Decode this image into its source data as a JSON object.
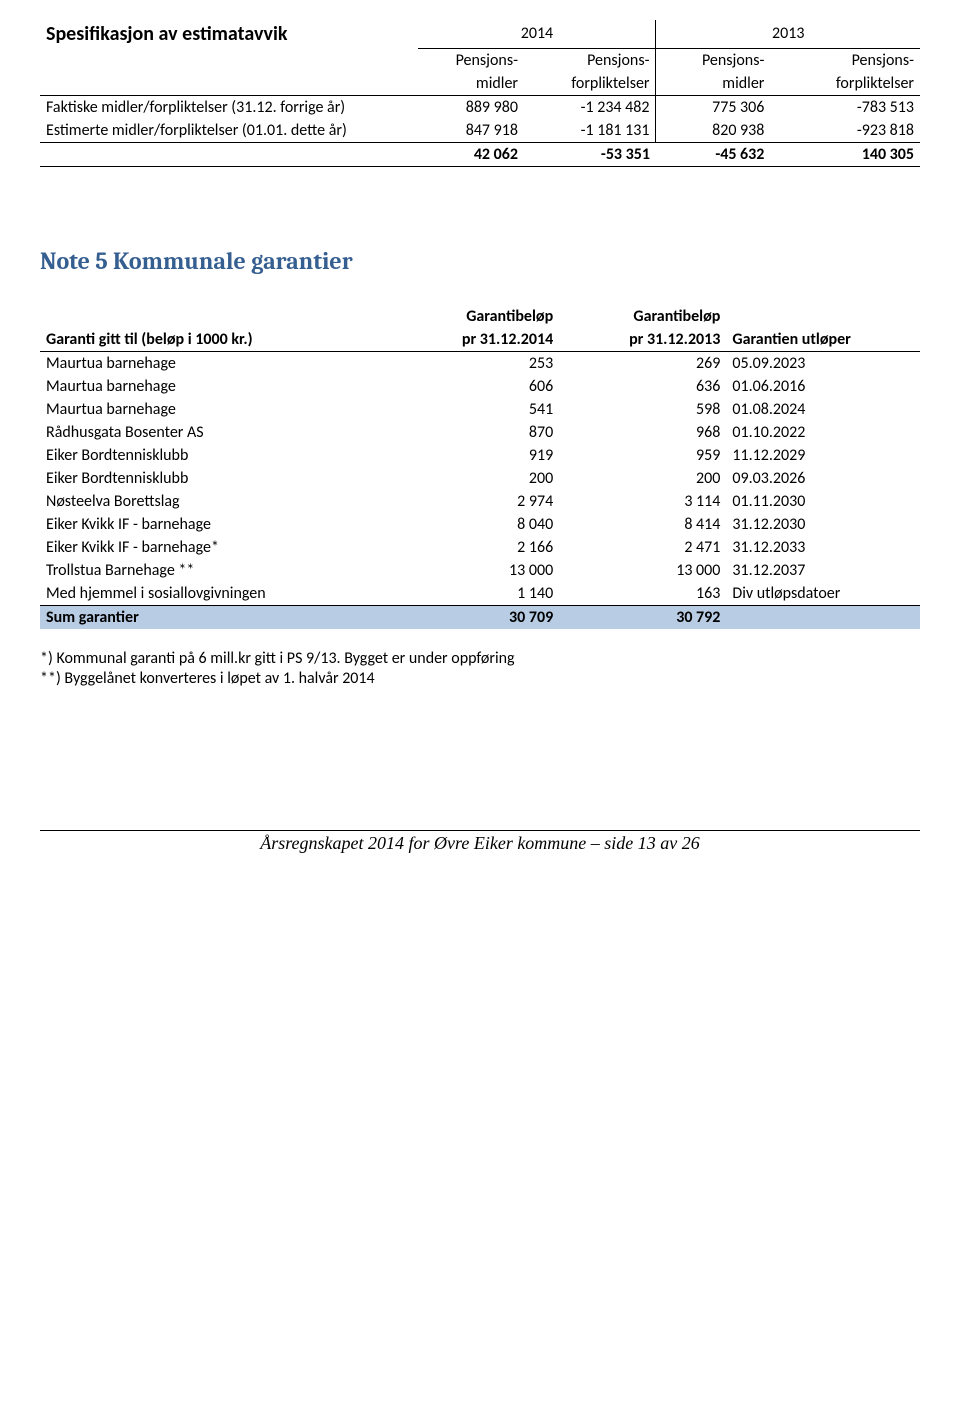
{
  "section1": {
    "title": "Spesifikasjon av estimatavvik",
    "years": [
      "2014",
      "2013"
    ],
    "col_headers": [
      "",
      "Pensjons-",
      "Pensjons-",
      "Pensjons-",
      "Pensjons-"
    ],
    "col_headers2": [
      "",
      "midler",
      "forpliktelser",
      "midler",
      "forpliktelser"
    ],
    "rows": [
      {
        "label": "Faktiske midler/forpliktelser (31.12. forrige år)",
        "c": [
          "889 980",
          "-1 234 482",
          "775 306",
          "-783 513"
        ]
      },
      {
        "label": "Estimerte midler/forpliktelser (01.01. dette år)",
        "c": [
          "847 918",
          "-1 181 131",
          "820 938",
          "-923 818"
        ]
      }
    ],
    "total": {
      "label": "",
      "c": [
        "42 062",
        "-53 351",
        "-45 632",
        "140 305"
      ]
    }
  },
  "section2": {
    "title": "Note 5 Kommunale garantier",
    "h1": [
      "",
      "Garantibeløp",
      "Garantibeløp",
      ""
    ],
    "h2": [
      "Garanti gitt til (beløp i 1000 kr.)",
      "pr 31.12.2014",
      "pr 31.12.2013",
      "Garantien utløper"
    ],
    "rows": [
      [
        "Maurtua barnehage",
        "253",
        "269",
        "05.09.2023"
      ],
      [
        "Maurtua barnehage",
        "606",
        "636",
        "01.06.2016"
      ],
      [
        "Maurtua barnehage",
        "541",
        "598",
        "01.08.2024"
      ],
      [
        "Rådhusgata Bosenter AS",
        "870",
        "968",
        "01.10.2022"
      ],
      [
        "Eiker Bordtennisklubb",
        "919",
        "959",
        "11.12.2029"
      ],
      [
        "Eiker Bordtennisklubb",
        "200",
        "200",
        "09.03.2026"
      ],
      [
        "Nøsteelva Borettslag",
        "2 974",
        "3 114",
        "01.11.2030"
      ],
      [
        "Eiker Kvikk IF - barnehage",
        "8 040",
        "8 414",
        "31.12.2030"
      ],
      [
        "Eiker Kvikk IF - barnehage*",
        "2 166",
        "2 471",
        "31.12.2033"
      ],
      [
        "Trollstua Barnehage **",
        "13 000",
        "13 000",
        "31.12.2037"
      ],
      [
        "Med hjemmel i sosiallovgivningen",
        "1 140",
        "163",
        "Div utløpsdatoer"
      ]
    ],
    "sum": [
      "Sum garantier",
      "30 709",
      "30 792",
      ""
    ]
  },
  "footnotes": {
    "l1": "*) Kommunal garanti på 6 mill.kr gitt i PS 9/13. Bygget er under oppføring",
    "l2": "**) Byggelånet konverteres i løpet av 1. halvår 2014"
  },
  "pagefoot": "Årsregnskapet 2014 for Øvre Eiker kommune – side 13 av 26"
}
